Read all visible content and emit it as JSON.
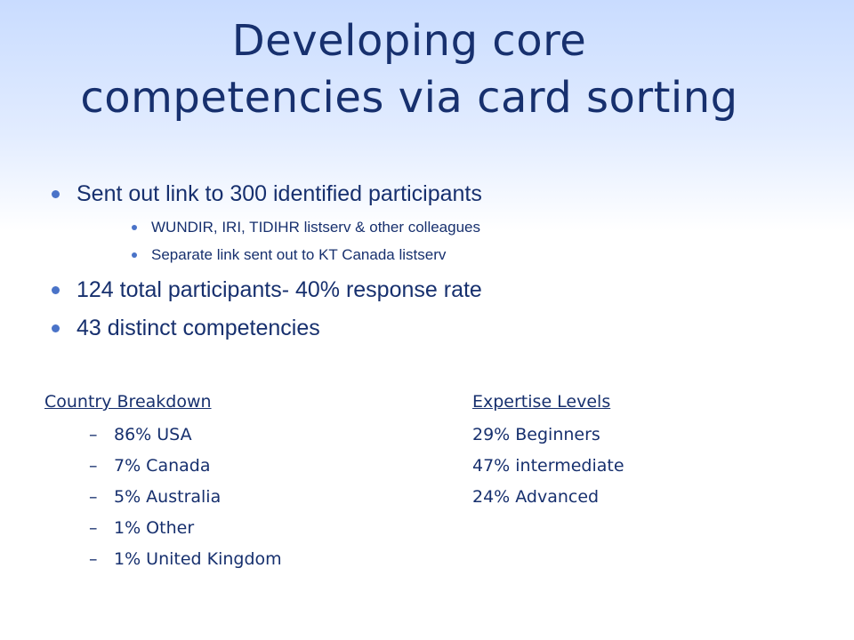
{
  "title": {
    "line1": "Developing core",
    "line2": "competencies via card sorting"
  },
  "bullets": [
    {
      "text": "Sent out link to 300 identified participants",
      "sub": [
        "WUNDIR, IRI, TIDIHR listserv & other colleagues",
        "Separate link sent out to KT Canada listserv"
      ]
    },
    {
      "text": "124 total participants- 40% response rate",
      "sub": []
    },
    {
      "text": "43 distinct competencies",
      "sub": []
    }
  ],
  "country": {
    "heading": "Country Breakdown",
    "dash": "–",
    "items": [
      "86% USA",
      "7% Canada",
      "5% Australia",
      "1% Other",
      "1% United Kingdom"
    ]
  },
  "expertise": {
    "heading": "Expertise Levels",
    "items": [
      "29% Beginners",
      "47% intermediate",
      "24% Advanced"
    ]
  },
  "colors": {
    "text": "#17306e",
    "bullet": "#4a73c8",
    "gradient_top": "#c9dcff"
  }
}
